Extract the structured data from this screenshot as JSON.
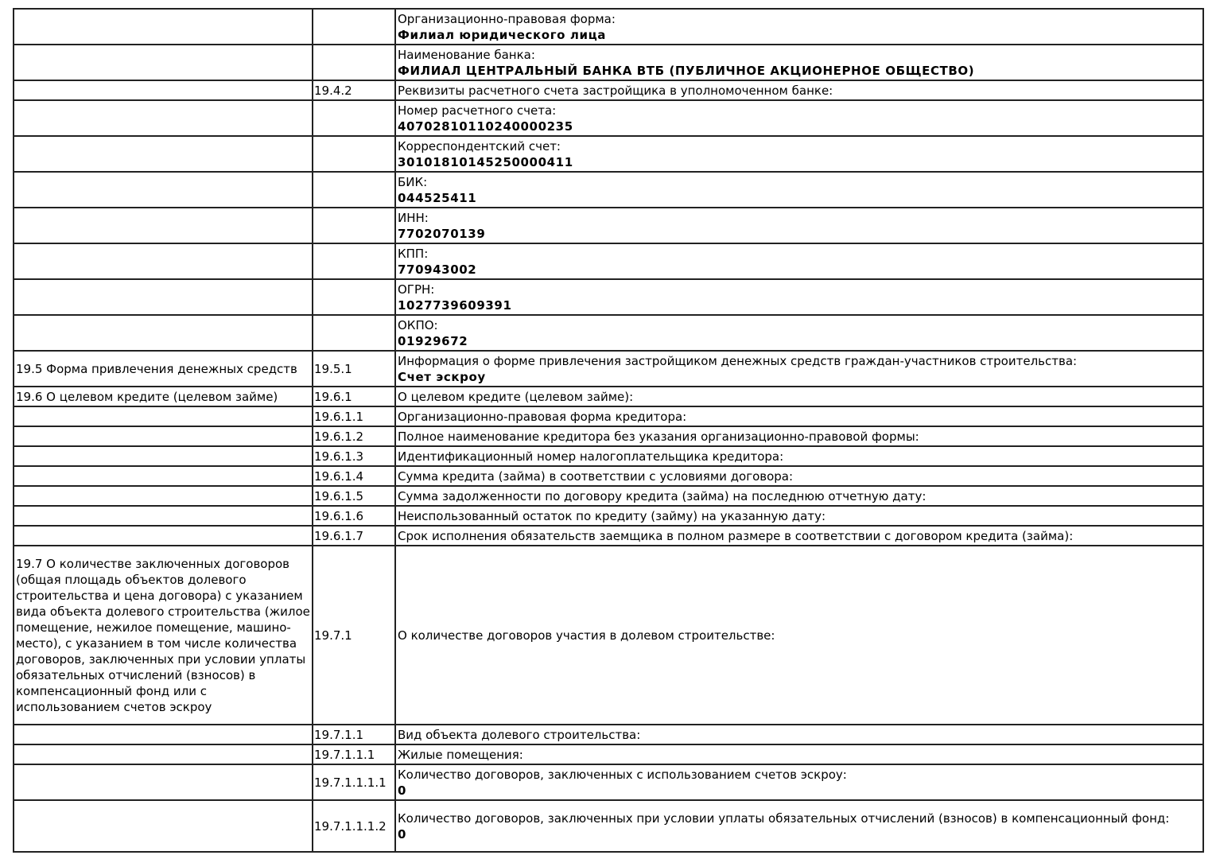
{
  "rows": [
    {
      "section": "",
      "code": "",
      "label": "Организационно-правовая форма:",
      "value": "Филиал юридического лица"
    },
    {
      "section": "",
      "code": "",
      "label": "Наименование банка:",
      "value": "ФИЛИАЛ ЦЕНТРАЛЬНЫЙ БАНКА ВТБ (ПУБЛИЧНОЕ АКЦИОНЕРНОЕ ОБЩЕСТВО)"
    },
    {
      "section": "",
      "code": "19.4.2",
      "label": "Реквизиты расчетного счета застройщика в уполномоченном банке:",
      "value": ""
    },
    {
      "section": "",
      "code": "",
      "label": "Номер расчетного счета:",
      "value": "40702810110240000235"
    },
    {
      "section": "",
      "code": "",
      "label": "Корреспондентский счет:",
      "value": "30101810145250000411"
    },
    {
      "section": "",
      "code": "",
      "label": "БИК:",
      "value": "044525411"
    },
    {
      "section": "",
      "code": "",
      "label": "ИНН:",
      "value": "7702070139"
    },
    {
      "section": "",
      "code": "",
      "label": "КПП:",
      "value": "770943002"
    },
    {
      "section": "",
      "code": "",
      "label": "ОГРН:",
      "value": "1027739609391"
    },
    {
      "section": "",
      "code": "",
      "label": "ОКПО:",
      "value": "01929672"
    },
    {
      "section": "19.5 Форма привлечения денежных средств",
      "code": "19.5.1",
      "label": "Информация о форме привлечения застройщиком денежных средств граждан-участников строительства:",
      "value": "Счет эскроу"
    },
    {
      "section": "19.6 О целевом кредите (целевом займе)",
      "code": "19.6.1",
      "label": "О целевом кредите (целевом займе):",
      "value": ""
    },
    {
      "section": "",
      "code": "19.6.1.1",
      "label": "Организационно-правовая форма кредитора:",
      "value": ""
    },
    {
      "section": "",
      "code": "19.6.1.2",
      "label": "Полное наименование кредитора без указания организационно-правовой формы:",
      "value": ""
    },
    {
      "section": "",
      "code": "19.6.1.3",
      "label": "Идентификационный номер налогоплательщика кредитора:",
      "value": ""
    },
    {
      "section": "",
      "code": "19.6.1.4",
      "label": "Сумма кредита (займа) в соответствии с условиями договора:",
      "value": ""
    },
    {
      "section": "",
      "code": "19.6.1.5",
      "label": "Сумма задолженности по договору кредита (займа) на последнюю отчетную дату:",
      "value": ""
    },
    {
      "section": "",
      "code": "19.6.1.6",
      "label": "Неиспользованный остаток по кредиту (займу) на указанную дату:",
      "value": ""
    },
    {
      "section": "",
      "code": "19.6.1.7",
      "label": "Срок исполнения обязательств заемщика в полном размере в соответствии с договором кредита (займа):",
      "value": ""
    },
    {
      "section": "19.7 О количестве заключенных договоров (общая площадь объектов долевого строительства и цена договора) с указанием вида объекта долевого строительства (жилое помещение, нежилое помещение, машино-место), с указанием в том числе количества договоров, заключенных при условии уплаты обязательных отчислений (взносов) в компенсационный фонд или с использованием счетов эскроу",
      "code": "19.7.1",
      "label": "О количестве договоров участия в долевом строительстве:",
      "value": ""
    },
    {
      "section": "",
      "code": "19.7.1.1",
      "label": "Вид объекта долевого строительства:",
      "value": ""
    },
    {
      "section": "",
      "code": "19.7.1.1.1",
      "label": "Жилые помещения:",
      "value": ""
    },
    {
      "section": "",
      "code": "19.7.1.1.1.1",
      "label": "Количество договоров, заключенных с использованием счетов эскроу:",
      "value": "0"
    },
    {
      "section": "",
      "code": "19.7.1.1.1.2",
      "label": "Количество договоров, заключенных при условии уплаты обязательных отчислений (взносов) в компенсационный фонд:",
      "value": "0"
    }
  ]
}
